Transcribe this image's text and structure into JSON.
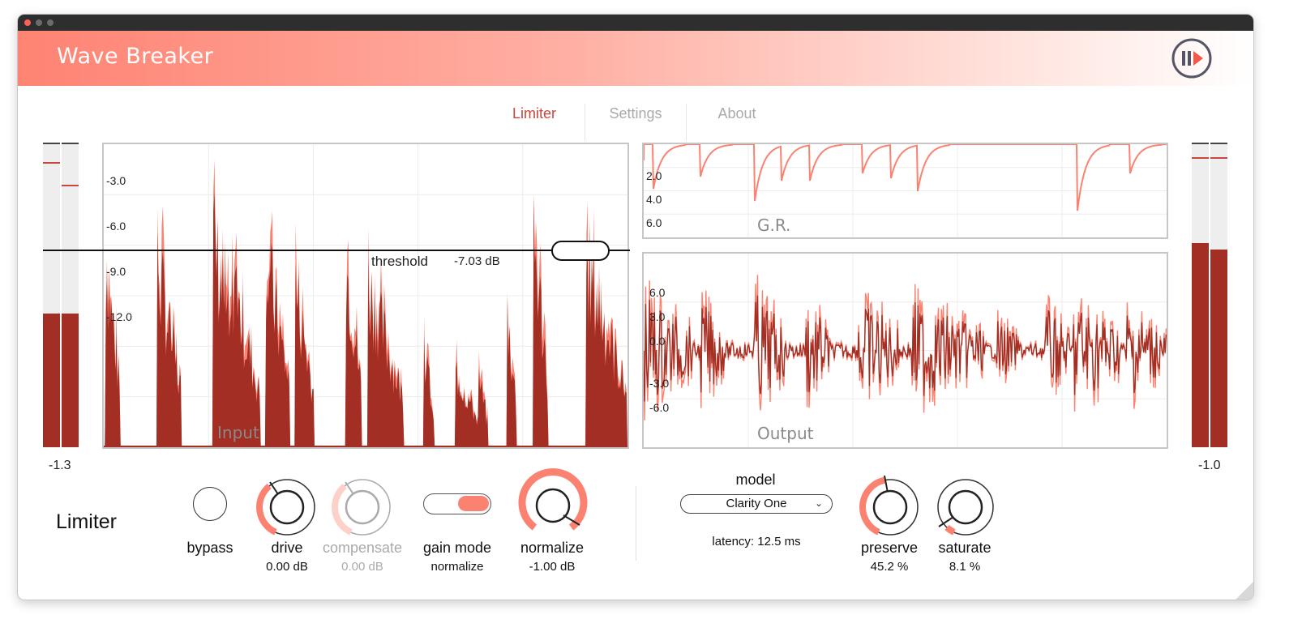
{
  "app": {
    "title": "Wave Breaker",
    "logo_icon": "pause-play-icon"
  },
  "tabs": [
    {
      "label": "Limiter",
      "active": true
    },
    {
      "label": "Settings",
      "active": false
    },
    {
      "label": "About",
      "active": false
    }
  ],
  "meters": {
    "input": {
      "value": "-1.3",
      "levels": [
        0.44,
        0.44
      ]
    },
    "output": {
      "value": "-1.0",
      "levels": [
        0.67,
        0.65
      ]
    }
  },
  "input_graph": {
    "label": "Input",
    "ticks": [
      "-3.0",
      "-6.0",
      "-9.0",
      "-12.0"
    ],
    "threshold_label": "threshold",
    "threshold_value": "-7.03 dB"
  },
  "gr_graph": {
    "label": "G.R.",
    "ticks": [
      "2.0",
      "4.0",
      "6.0"
    ]
  },
  "output_graph": {
    "label": "Output",
    "ticks": [
      "6.0",
      "3.0",
      "0.0",
      "-3.0",
      "-6.0"
    ]
  },
  "limiter": {
    "section_title": "Limiter",
    "bypass": {
      "label": "bypass"
    },
    "drive": {
      "label": "drive",
      "value": "0.00 dB"
    },
    "compensate": {
      "label": "compensate",
      "value": "0.00 dB"
    },
    "gain_mode": {
      "label": "gain mode",
      "value": "normalize"
    },
    "normalize": {
      "label": "normalize",
      "value": "-1.00 dB"
    },
    "model": {
      "label": "model",
      "selected": "Clarity One"
    },
    "latency": "latency: 12.5 ms",
    "preserve": {
      "label": "preserve",
      "value": "45.2 %"
    },
    "saturate": {
      "label": "saturate",
      "value": "8.1 %"
    }
  },
  "colors": {
    "accent": "#fb8270",
    "dark": "#a32e23",
    "active_tab": "#c8463a"
  }
}
